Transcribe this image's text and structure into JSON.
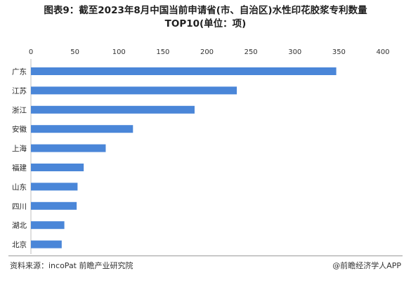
{
  "chart_data": {
    "type": "bar",
    "orientation": "horizontal",
    "title": "图表9：截至2023年8月中国当前申请省(市、自治区)水性印花胶浆专利数量",
    "title_line2": "TOP10(单位：项)",
    "categories": [
      "广东",
      "江苏",
      "浙江",
      "安徽",
      "上海",
      "福建",
      "山东",
      "四川",
      "湖北",
      "北京"
    ],
    "values": [
      347,
      234,
      186,
      116,
      85,
      60,
      53,
      52,
      38,
      35
    ],
    "xlim": [
      0,
      400
    ],
    "x_ticks": [
      "0",
      "50",
      "100",
      "150",
      "200",
      "250",
      "300",
      "350",
      "400"
    ],
    "x_axis_position": "top",
    "grid": false,
    "bar_color": "#4a86d8"
  },
  "footer": {
    "source": "资料来源：incoPat 前瞻产业研究院",
    "brand": "@前瞻经济学人APP"
  }
}
